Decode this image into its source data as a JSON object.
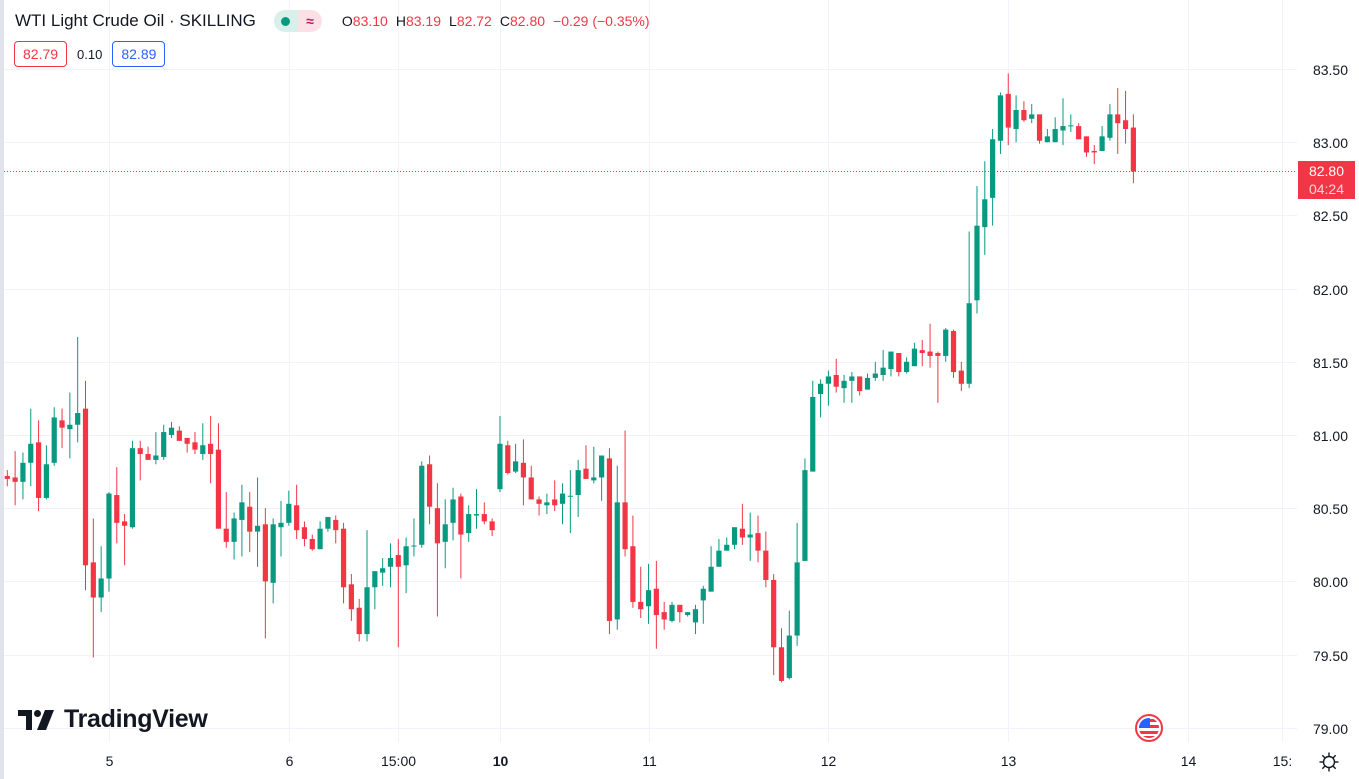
{
  "header": {
    "symbol_title": "WTI Light Crude Oil · SKILLING",
    "ohlc": {
      "o_label": "O",
      "o": "83.10",
      "h_label": "H",
      "h": "83.19",
      "l_label": "L",
      "l": "82.72",
      "c_label": "C",
      "c": "82.80",
      "change": "−0.29 (−0.35%)"
    },
    "bid": "82.79",
    "spread": "0.10",
    "ask": "82.89",
    "status_icons": [
      "market-open-dot-icon",
      "delayed-data-wave-icon"
    ]
  },
  "logo": "TradingView",
  "current_price": {
    "price": "82.80",
    "countdown": "04:24"
  },
  "colors": {
    "up": "#089981",
    "down": "#f23645",
    "grid": "#f0f3fa",
    "ask": "#2962ff"
  },
  "chart_data": {
    "type": "candlestick",
    "title": "WTI Light Crude Oil · SKILLING",
    "ylim": [
      79.0,
      83.5
    ],
    "y_ticks": [
      "83.50",
      "83.00",
      "82.50",
      "82.00",
      "81.50",
      "81.00",
      "80.50",
      "80.00",
      "79.50",
      "79.00"
    ],
    "x_ticks": [
      {
        "label": "5",
        "index": 13,
        "bold": false
      },
      {
        "label": "6",
        "index": 36,
        "bold": false
      },
      {
        "label": "15:00",
        "index": 50,
        "bold": false
      },
      {
        "label": "10",
        "index": 63,
        "bold": true
      },
      {
        "label": "11",
        "index": 82,
        "bold": false
      },
      {
        "label": "12",
        "index": 105,
        "bold": false
      },
      {
        "label": "13",
        "index": 128,
        "bold": false
      },
      {
        "label": "14",
        "index": 151,
        "bold": false
      },
      {
        "label": "15:",
        "index": 163,
        "bold": false
      }
    ],
    "grid": true,
    "last_price": 82.8,
    "candles_ohlc": [
      [
        80.72,
        80.76,
        80.65,
        80.7
      ],
      [
        80.71,
        80.89,
        80.52,
        80.68
      ],
      [
        80.68,
        80.88,
        80.56,
        80.81
      ],
      [
        80.81,
        81.18,
        80.65,
        80.94
      ],
      [
        80.95,
        81.1,
        80.48,
        80.57
      ],
      [
        80.57,
        80.93,
        80.56,
        80.8
      ],
      [
        80.81,
        81.19,
        80.79,
        81.12
      ],
      [
        81.1,
        81.18,
        80.91,
        81.05
      ],
      [
        81.04,
        81.29,
        80.84,
        81.07
      ],
      [
        81.07,
        81.67,
        80.95,
        81.15
      ],
      [
        81.18,
        81.37,
        79.94,
        80.11
      ],
      [
        80.13,
        80.43,
        79.48,
        79.89
      ],
      [
        79.89,
        80.24,
        79.79,
        80.02
      ],
      [
        80.02,
        80.61,
        79.93,
        80.6
      ],
      [
        80.59,
        80.78,
        80.26,
        80.4
      ],
      [
        80.41,
        80.46,
        80.11,
        80.38
      ],
      [
        80.37,
        80.96,
        80.36,
        80.91
      ],
      [
        80.91,
        80.96,
        80.69,
        80.87
      ],
      [
        80.87,
        80.92,
        80.83,
        80.83
      ],
      [
        80.83,
        81.02,
        80.8,
        80.86
      ],
      [
        80.85,
        81.07,
        80.83,
        81.02
      ],
      [
        81.0,
        81.09,
        80.98,
        81.05
      ],
      [
        81.03,
        81.06,
        80.96,
        80.96
      ],
      [
        80.98,
        80.98,
        80.88,
        80.94
      ],
      [
        80.95,
        81.02,
        80.87,
        80.9
      ],
      [
        80.87,
        81.08,
        80.83,
        80.93
      ],
      [
        80.94,
        81.13,
        80.67,
        80.87
      ],
      [
        80.9,
        81.08,
        80.36,
        80.36
      ],
      [
        80.36,
        80.61,
        80.23,
        80.27
      ],
      [
        80.27,
        80.47,
        80.15,
        80.43
      ],
      [
        80.42,
        80.66,
        80.17,
        80.54
      ],
      [
        80.51,
        80.61,
        80.2,
        80.34
      ],
      [
        80.34,
        80.71,
        80.1,
        80.38
      ],
      [
        80.39,
        80.5,
        79.61,
        80.0
      ],
      [
        79.99,
        80.43,
        79.85,
        80.39
      ],
      [
        80.37,
        80.55,
        80.17,
        80.4
      ],
      [
        80.4,
        80.62,
        80.38,
        80.53
      ],
      [
        80.52,
        80.66,
        80.29,
        80.35
      ],
      [
        80.37,
        80.41,
        80.24,
        80.29
      ],
      [
        80.29,
        80.32,
        80.21,
        80.22
      ],
      [
        80.22,
        80.41,
        80.22,
        80.36
      ],
      [
        80.36,
        80.44,
        80.34,
        80.44
      ],
      [
        80.42,
        80.45,
        80.26,
        80.35
      ],
      [
        80.36,
        80.4,
        79.85,
        79.96
      ],
      [
        79.98,
        80.05,
        79.73,
        79.81
      ],
      [
        79.82,
        79.88,
        79.59,
        79.64
      ],
      [
        79.64,
        80.35,
        79.59,
        79.96
      ],
      [
        79.96,
        80.07,
        79.81,
        80.07
      ],
      [
        80.06,
        80.16,
        79.97,
        80.09
      ],
      [
        80.1,
        80.26,
        79.96,
        80.16
      ],
      [
        80.18,
        80.29,
        79.55,
        80.1
      ],
      [
        80.11,
        80.3,
        79.92,
        80.24
      ],
      [
        80.24,
        80.43,
        80.17,
        80.245
      ],
      [
        80.25,
        80.82,
        80.23,
        80.79
      ],
      [
        80.8,
        80.86,
        80.39,
        80.51
      ],
      [
        80.5,
        80.67,
        79.76,
        80.26
      ],
      [
        80.27,
        80.56,
        80.09,
        80.39
      ],
      [
        80.4,
        80.64,
        80.28,
        80.56
      ],
      [
        80.58,
        80.6,
        80.02,
        80.32
      ],
      [
        80.33,
        80.52,
        80.27,
        80.46
      ],
      [
        80.45,
        80.63,
        80.36,
        80.46
      ],
      [
        80.46,
        80.54,
        80.39,
        80.41
      ],
      [
        80.41,
        80.43,
        80.31,
        80.35
      ],
      [
        80.63,
        81.13,
        80.61,
        80.94
      ],
      [
        80.93,
        80.96,
        80.73,
        80.74
      ],
      [
        80.75,
        80.94,
        80.74,
        80.82
      ],
      [
        80.81,
        80.97,
        80.52,
        80.71
      ],
      [
        80.71,
        80.79,
        80.56,
        80.56
      ],
      [
        80.56,
        80.58,
        80.45,
        80.53
      ],
      [
        80.52,
        80.6,
        80.46,
        80.54
      ],
      [
        80.56,
        80.69,
        80.48,
        80.52
      ],
      [
        80.53,
        80.67,
        80.39,
        80.6
      ],
      [
        80.58,
        80.76,
        80.33,
        80.585
      ],
      [
        80.59,
        80.83,
        80.44,
        80.76
      ],
      [
        80.77,
        80.93,
        80.7,
        80.7
      ],
      [
        80.69,
        80.92,
        80.67,
        80.71
      ],
      [
        80.71,
        80.86,
        80.55,
        80.86
      ],
      [
        80.84,
        80.91,
        79.64,
        79.73
      ],
      [
        79.74,
        80.79,
        79.67,
        80.54
      ],
      [
        80.54,
        81.03,
        80.17,
        80.22
      ],
      [
        80.24,
        80.45,
        79.82,
        79.86
      ],
      [
        79.86,
        80.1,
        79.75,
        79.81
      ],
      [
        79.83,
        80.12,
        79.71,
        79.94
      ],
      [
        79.95,
        80.14,
        79.54,
        79.77
      ],
      [
        79.79,
        79.86,
        79.67,
        79.74
      ],
      [
        79.73,
        79.86,
        79.72,
        79.84
      ],
      [
        79.84,
        79.84,
        79.72,
        79.79
      ],
      [
        79.77,
        79.79,
        79.76,
        79.79
      ],
      [
        79.72,
        79.84,
        79.64,
        79.81
      ],
      [
        79.87,
        79.97,
        79.71,
        79.95
      ],
      [
        79.93,
        80.24,
        79.93,
        80.1
      ],
      [
        80.1,
        80.29,
        80.1,
        80.21
      ],
      [
        80.21,
        80.3,
        80.21,
        80.25
      ],
      [
        80.25,
        80.37,
        80.22,
        80.37
      ],
      [
        80.36,
        80.53,
        80.25,
        80.3
      ],
      [
        80.3,
        80.47,
        80.14,
        80.32
      ],
      [
        80.33,
        80.45,
        80.13,
        80.21
      ],
      [
        80.21,
        80.34,
        79.96,
        80.01
      ],
      [
        80.01,
        80.05,
        79.36,
        79.55
      ],
      [
        79.55,
        79.68,
        79.31,
        79.32
      ],
      [
        79.34,
        79.8,
        79.33,
        79.63
      ],
      [
        79.63,
        80.4,
        79.56,
        80.13
      ],
      [
        80.14,
        80.84,
        80.14,
        80.76
      ],
      [
        80.75,
        81.37,
        80.75,
        81.26
      ],
      [
        81.28,
        81.38,
        81.12,
        81.35
      ],
      [
        81.35,
        81.44,
        81.2,
        81.4
      ],
      [
        81.41,
        81.52,
        81.29,
        81.33
      ],
      [
        81.32,
        81.41,
        81.22,
        81.37
      ],
      [
        81.37,
        81.43,
        81.22,
        81.4
      ],
      [
        81.4,
        81.4,
        81.27,
        81.3
      ],
      [
        81.31,
        81.42,
        81.31,
        81.39
      ],
      [
        81.39,
        81.5,
        81.37,
        81.42
      ],
      [
        81.41,
        81.58,
        81.37,
        81.46
      ],
      [
        81.45,
        81.57,
        81.4,
        81.57
      ],
      [
        81.56,
        81.56,
        81.4,
        81.43
      ],
      [
        81.43,
        81.53,
        81.42,
        81.5
      ],
      [
        81.47,
        81.63,
        81.47,
        81.59
      ],
      [
        81.58,
        81.65,
        81.47,
        81.56
      ],
      [
        81.57,
        81.76,
        81.46,
        81.54
      ],
      [
        81.56,
        81.57,
        81.22,
        81.54
      ],
      [
        81.54,
        81.73,
        81.5,
        81.72
      ],
      [
        81.71,
        81.72,
        81.39,
        81.43
      ],
      [
        81.44,
        81.5,
        81.3,
        81.35
      ],
      [
        81.35,
        82.39,
        81.32,
        81.9
      ],
      [
        81.92,
        82.7,
        81.83,
        82.43
      ],
      [
        82.42,
        82.87,
        82.23,
        82.61
      ],
      [
        82.62,
        83.09,
        82.43,
        83.02
      ],
      [
        83.01,
        83.34,
        82.92,
        83.32
      ],
      [
        83.33,
        83.47,
        82.98,
        83.1
      ],
      [
        83.09,
        83.32,
        83.0,
        83.22
      ],
      [
        83.22,
        83.28,
        83.14,
        83.15
      ],
      [
        83.16,
        83.26,
        83.13,
        83.19
      ],
      [
        83.19,
        83.19,
        82.99,
        83.01
      ],
      [
        83.0,
        83.09,
        83.0,
        83.04
      ],
      [
        83.0,
        83.17,
        83.0,
        83.09
      ],
      [
        83.08,
        83.3,
        82.98,
        83.11
      ],
      [
        83.11,
        83.19,
        83.07,
        83.115
      ],
      [
        83.11,
        83.13,
        83.02,
        83.02
      ],
      [
        83.04,
        83.04,
        82.9,
        82.93
      ],
      [
        82.94,
        82.98,
        82.85,
        82.93
      ],
      [
        82.94,
        83.11,
        82.94,
        83.04
      ],
      [
        83.03,
        83.26,
        83.01,
        83.19
      ],
      [
        83.19,
        83.37,
        82.92,
        83.13
      ],
      [
        83.15,
        83.35,
        82.99,
        83.09
      ],
      [
        83.1,
        83.19,
        82.72,
        82.8
      ]
    ]
  }
}
